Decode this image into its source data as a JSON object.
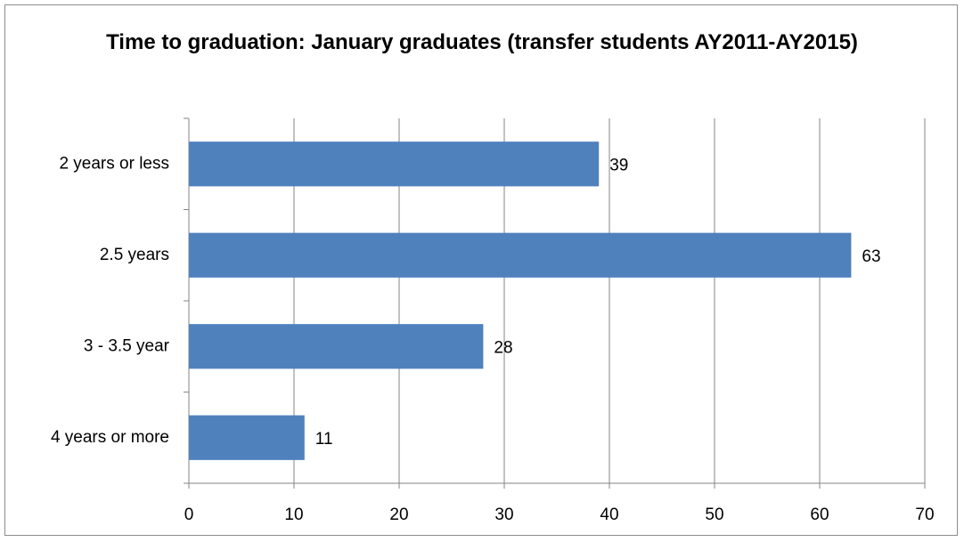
{
  "chart_data": {
    "type": "bar",
    "orientation": "horizontal",
    "title": "Time to graduation: January graduates (transfer students AY2011-AY2015)",
    "categories": [
      "2 years or less",
      "2.5 years",
      "3 - 3.5 year",
      "4 years or more"
    ],
    "values": [
      39,
      63,
      28,
      11
    ],
    "color": "#4f81bd",
    "xlim": [
      0,
      70
    ],
    "xticks": [
      0,
      10,
      20,
      30,
      40,
      50,
      60,
      70
    ],
    "grid": true
  }
}
